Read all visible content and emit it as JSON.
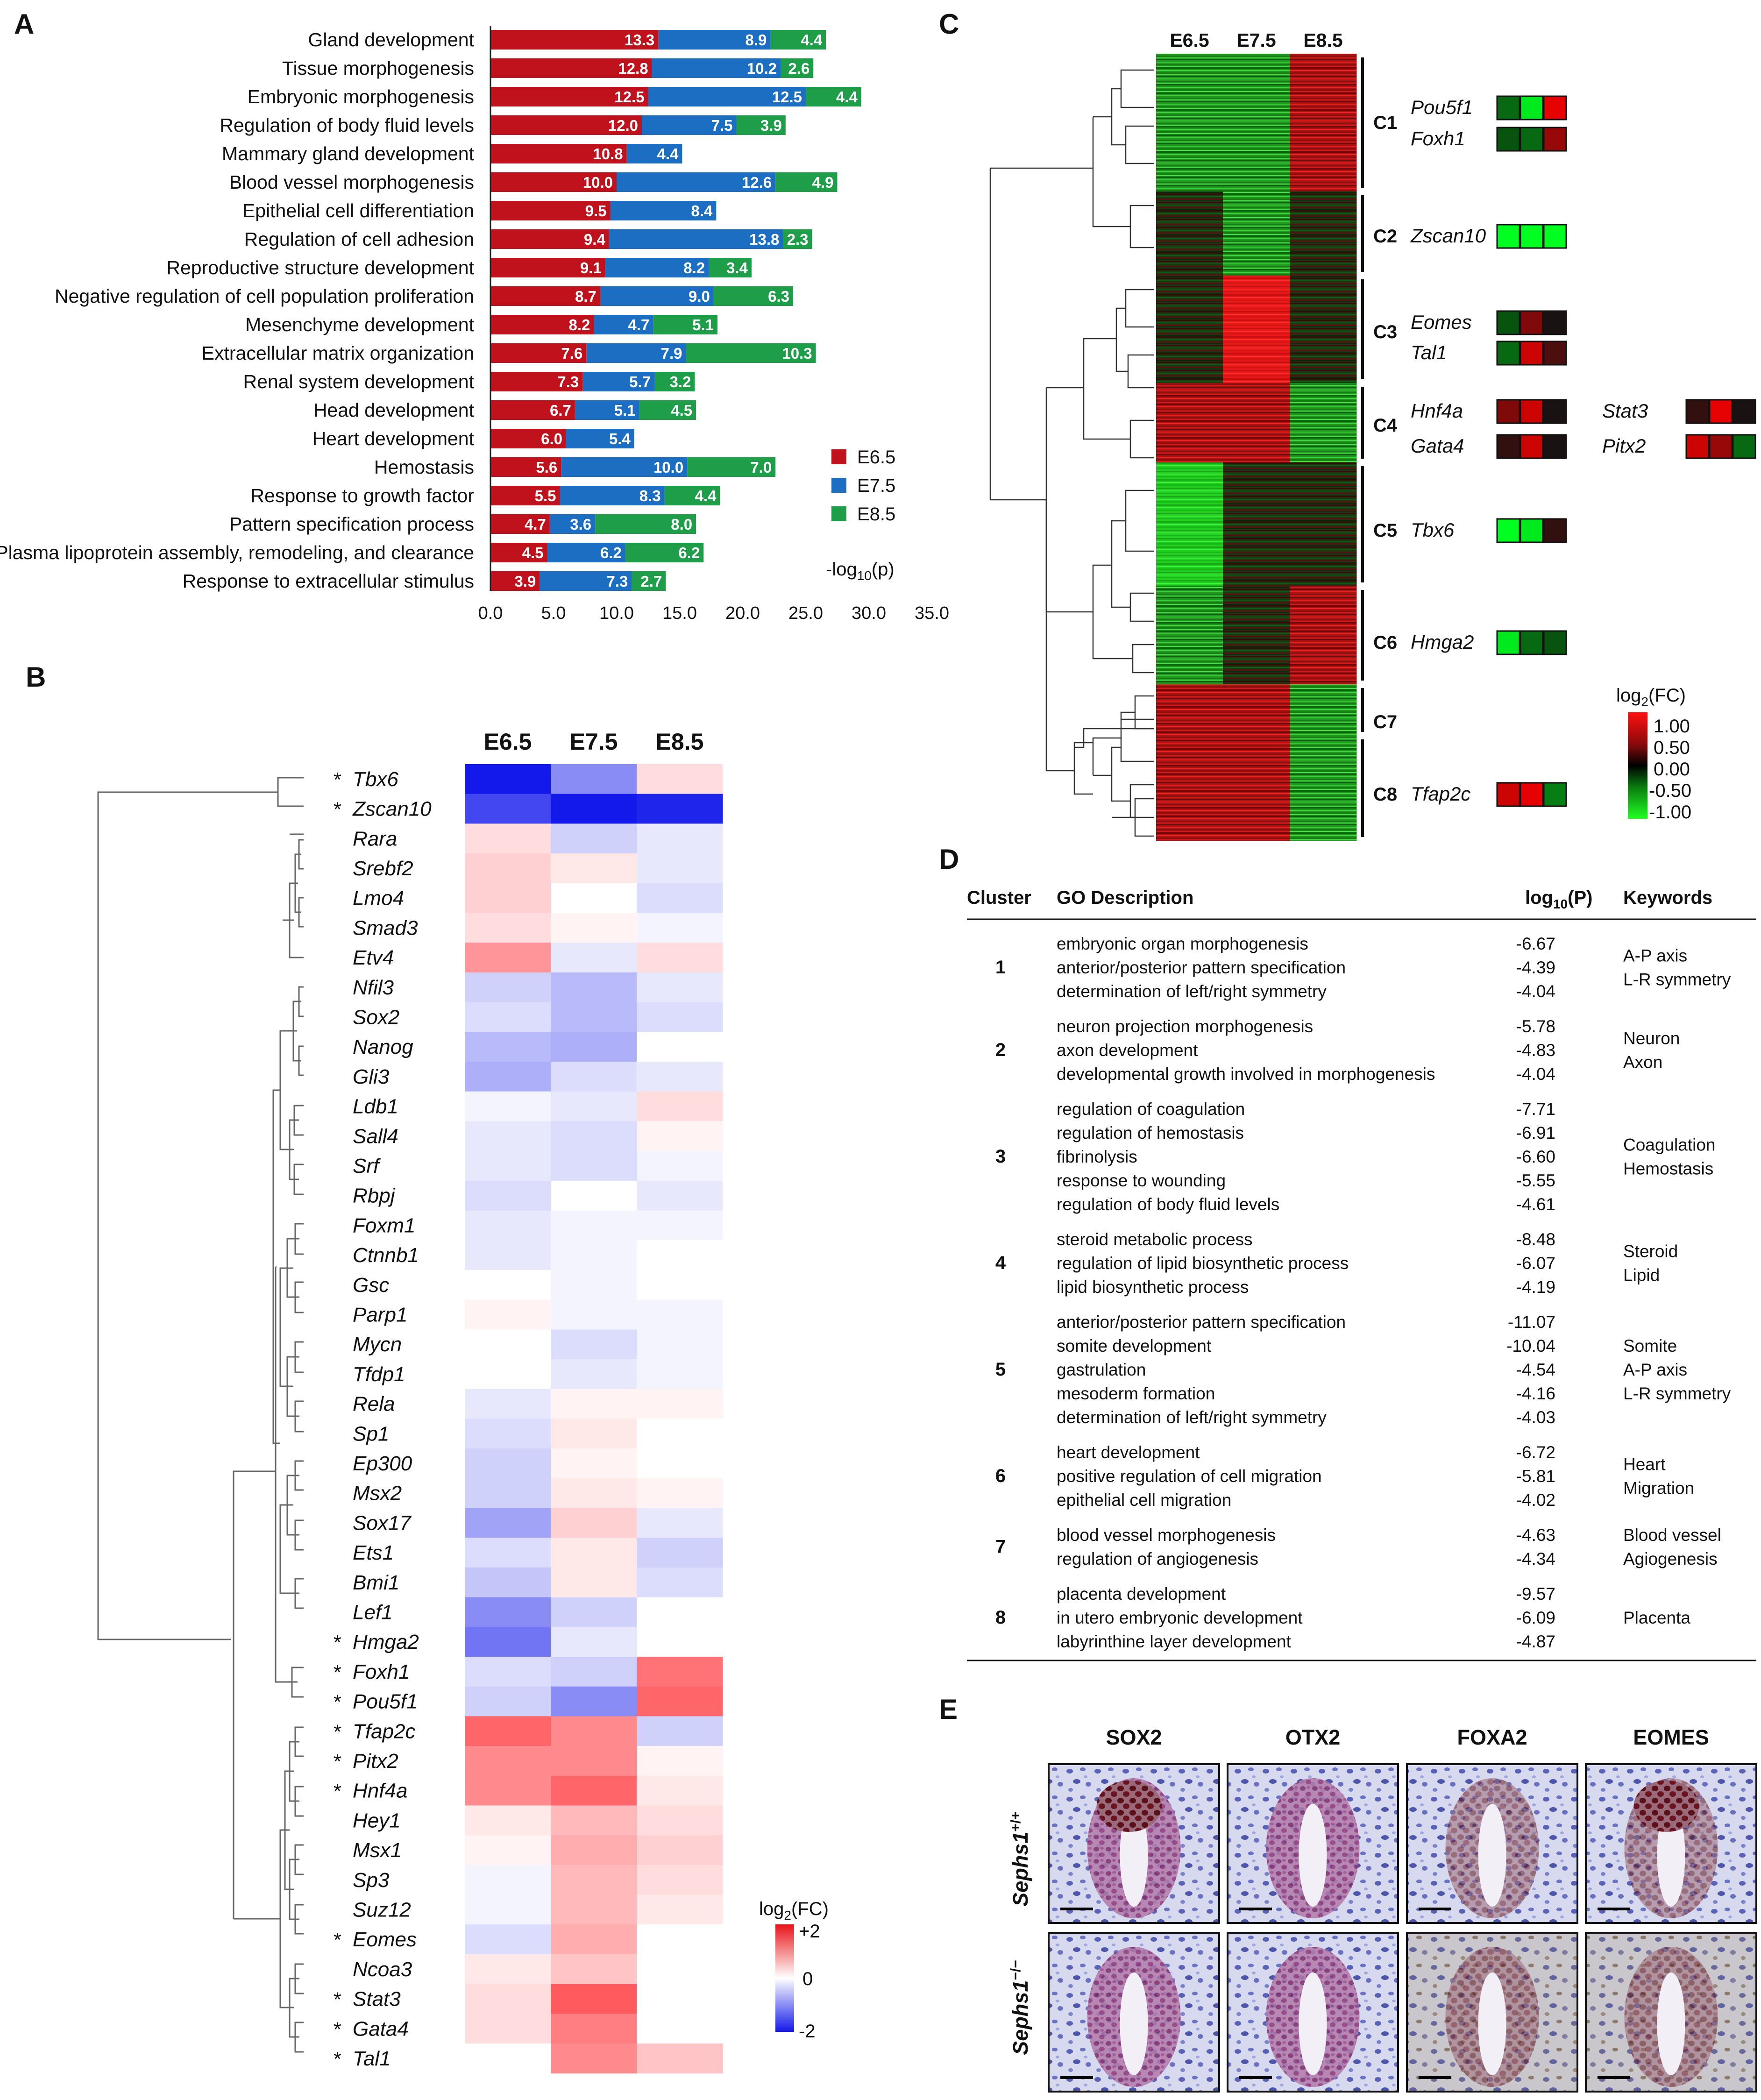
{
  "panels": {
    "a": "A",
    "b": "B",
    "c": "C",
    "d": "D",
    "e": "E"
  },
  "chart_data": [
    {
      "type": "bar",
      "stacked": true,
      "orientation": "horizontal",
      "categories": [
        "Gland development",
        "Tissue morphogenesis",
        "Embryonic morphogenesis",
        "Regulation of body fluid levels",
        "Mammary gland development",
        "Blood vessel morphogenesis",
        "Epithelial cell differentiation",
        "Regulation of cell adhesion",
        "Reproductive structure development",
        "Negative regulation of cell population proliferation",
        "Mesenchyme development",
        "Extracellular matrix organization",
        "Renal system development",
        "Head development",
        "Heart development",
        "Hemostasis",
        "Response to growth factor",
        "Pattern specification process",
        "Plasma lipoprotein assembly, remodeling, and clearance",
        "Response to extracellular stimulus"
      ],
      "series": [
        {
          "name": "E6.5",
          "color": "#c0121c",
          "values": [
            13.3,
            12.8,
            12.5,
            12.0,
            10.8,
            10.0,
            9.5,
            9.4,
            9.1,
            8.7,
            8.2,
            7.6,
            7.3,
            6.7,
            6.0,
            5.6,
            5.5,
            4.7,
            4.5,
            3.9
          ]
        },
        {
          "name": "E7.5",
          "color": "#1b6ec2",
          "values": [
            8.9,
            10.2,
            12.5,
            7.5,
            4.4,
            12.6,
            8.4,
            13.8,
            8.2,
            9.0,
            4.7,
            7.9,
            5.7,
            5.1,
            5.4,
            10.0,
            8.3,
            3.6,
            6.2,
            7.3
          ]
        },
        {
          "name": "E8.5",
          "color": "#1e9e48",
          "values": [
            4.4,
            2.6,
            4.4,
            3.9,
            null,
            4.9,
            null,
            2.3,
            3.4,
            6.3,
            5.1,
            10.3,
            3.2,
            4.5,
            null,
            7.0,
            4.4,
            8.0,
            6.2,
            2.7
          ]
        }
      ],
      "xlim": [
        0,
        35
      ],
      "xticks": [
        "0.0",
        "5.0",
        "10.0",
        "15.0",
        "20.0",
        "25.0",
        "30.0",
        "35.0"
      ],
      "xlabel_pre": "-log",
      "xlabel_sub": "10",
      "xlabel_post": "(p)"
    },
    {
      "type": "heatmap",
      "columns": [
        "E6.5",
        "E7.5",
        "E8.5"
      ],
      "rows": [
        "Tbx6",
        "Zscan10",
        "Rara",
        "Srebf2",
        "Lmo4",
        "Smad3",
        "Etv4",
        "Nfil3",
        "Sox2",
        "Nanog",
        "Gli3",
        "Ldb1",
        "Sall4",
        "Srf",
        "Rbpj",
        "Foxm1",
        "Ctnnb1",
        "Gsc",
        "Parp1",
        "Mycn",
        "Tfdp1",
        "Rela",
        "Sp1",
        "Ep300",
        "Msx2",
        "Sox17",
        "Ets1",
        "Bmi1",
        "Lef1",
        "Hmga2",
        "Foxh1",
        "Pou5f1",
        "Tfap2c",
        "Pitx2",
        "Hnf4a",
        "Hey1",
        "Msx1",
        "Sp3",
        "Suz12",
        "Eomes",
        "Ncoa3",
        "Stat3",
        "Gata4",
        "Tal1"
      ],
      "starred": [
        "Tbx6",
        "Zscan10",
        "Hmga2",
        "Foxh1",
        "Pou5f1",
        "Tfap2c",
        "Pitx2",
        "Hnf4a",
        "Eomes",
        "Stat3",
        "Gata4",
        "Tal1"
      ],
      "values": [
        [
          -2.0,
          -1.0,
          0.3
        ],
        [
          -1.6,
          -2.0,
          -1.9
        ],
        [
          0.3,
          -0.4,
          -0.2
        ],
        [
          0.4,
          0.2,
          -0.2
        ],
        [
          0.4,
          0.0,
          -0.3
        ],
        [
          0.3,
          0.1,
          -0.1
        ],
        [
          0.9,
          -0.2,
          0.3
        ],
        [
          -0.4,
          -0.6,
          -0.2
        ],
        [
          -0.3,
          -0.6,
          -0.3
        ],
        [
          -0.6,
          -0.7,
          0.0
        ],
        [
          -0.7,
          -0.3,
          -0.2
        ],
        [
          -0.1,
          -0.2,
          0.3
        ],
        [
          -0.2,
          -0.3,
          0.1
        ],
        [
          -0.2,
          -0.3,
          -0.1
        ],
        [
          -0.3,
          0.0,
          -0.2
        ],
        [
          -0.2,
          -0.1,
          -0.1
        ],
        [
          -0.2,
          -0.1,
          0.0
        ],
        [
          0.0,
          -0.1,
          0.0
        ],
        [
          0.1,
          -0.1,
          -0.1
        ],
        [
          0.0,
          -0.3,
          -0.1
        ],
        [
          0.0,
          -0.2,
          -0.1
        ],
        [
          -0.2,
          0.1,
          0.1
        ],
        [
          -0.3,
          0.2,
          0.0
        ],
        [
          -0.4,
          0.1,
          0.0
        ],
        [
          -0.4,
          0.2,
          0.1
        ],
        [
          -0.8,
          0.4,
          -0.2
        ],
        [
          -0.3,
          0.2,
          -0.4
        ],
        [
          -0.5,
          0.2,
          -0.3
        ],
        [
          -1.0,
          -0.4,
          0.0
        ],
        [
          -1.2,
          -0.2,
          0.0
        ],
        [
          -0.3,
          -0.4,
          1.2
        ],
        [
          -0.4,
          -1.0,
          1.3
        ],
        [
          1.3,
          1.0,
          -0.4
        ],
        [
          1.0,
          1.0,
          0.1
        ],
        [
          1.0,
          1.3,
          0.2
        ],
        [
          0.2,
          0.6,
          0.3
        ],
        [
          0.1,
          0.7,
          0.4
        ],
        [
          -0.1,
          0.6,
          0.3
        ],
        [
          -0.1,
          0.6,
          0.2
        ],
        [
          -0.3,
          0.7,
          0.0
        ],
        [
          0.2,
          0.5,
          0.0
        ],
        [
          0.3,
          1.4,
          0.0
        ],
        [
          0.3,
          1.1,
          0.0
        ],
        [
          null,
          1.0,
          0.5
        ]
      ],
      "legend_title_pre": "log",
      "legend_title_sub": "2",
      "legend_title_post": "(FC)",
      "legend_ticks": [
        "+2",
        "0",
        "-2"
      ],
      "scale": [
        -2,
        2
      ]
    },
    {
      "type": "heatmap",
      "columns": [
        "E6.5",
        "E7.5",
        "E8.5"
      ],
      "clusters": [
        {
          "label": "C1",
          "genes": [
            {
              "name": "Pou5f1",
              "v": [
                -0.3,
                -0.9,
                0.9
              ]
            },
            {
              "name": "Foxh1",
              "v": [
                -0.2,
                -0.3,
                0.6
              ]
            }
          ]
        },
        {
          "label": "C2",
          "genes": [
            {
              "name": "Zscan10",
              "v": [
                -1.0,
                -1.0,
                -1.0
              ]
            }
          ]
        },
        {
          "label": "C3",
          "genes": [
            {
              "name": "Eomes",
              "v": [
                -0.2,
                0.5,
                0.1
              ]
            },
            {
              "name": "Tal1",
              "v": [
                -0.3,
                0.8,
                0.3
              ]
            }
          ]
        },
        {
          "label": "C4",
          "genes": [
            {
              "name": "Hnf4a",
              "v": [
                0.5,
                0.8,
                0.1
              ]
            },
            {
              "name": "Gata4",
              "v": [
                0.2,
                0.8,
                0.1
              ]
            },
            {
              "name": "Stat3",
              "v": [
                0.2,
                0.9,
                0.1
              ]
            },
            {
              "name": "Pitx2",
              "v": [
                0.8,
                0.6,
                -0.3
              ]
            }
          ]
        },
        {
          "label": "C5",
          "genes": [
            {
              "name": "Tbx6",
              "v": [
                -1.0,
                -0.9,
                0.2
              ]
            }
          ]
        },
        {
          "label": "C6",
          "genes": [
            {
              "name": "Hmga2",
              "v": [
                -0.9,
                -0.3,
                -0.2
              ]
            }
          ]
        },
        {
          "label": "C7",
          "genes": []
        },
        {
          "label": "C8",
          "genes": [
            {
              "name": "Tfap2c",
              "v": [
                0.8,
                0.9,
                -0.4
              ]
            }
          ]
        }
      ],
      "legend_title_pre": "log",
      "legend_title_sub": "2",
      "legend_title_post": "(FC)",
      "legend_ticks": [
        "1.00",
        "0.50",
        "0.00",
        "-0.50",
        "-1.00"
      ],
      "scale": [
        -1,
        1
      ]
    }
  ],
  "table": {
    "headers": {
      "cluster": "Cluster",
      "desc": "GO Description",
      "p_pre": "log",
      "p_sub": "10",
      "p_post": "(P)",
      "kw": "Keywords"
    },
    "rows": [
      {
        "cluster": "1",
        "terms": [
          "embryonic organ morphogenesis",
          "anterior/posterior pattern specification",
          "determination of left/right symmetry"
        ],
        "p": [
          "-6.67",
          "-4.39",
          "-4.04"
        ],
        "kw": [
          "A-P axis",
          "L-R symmetry"
        ]
      },
      {
        "cluster": "2",
        "terms": [
          "neuron projection morphogenesis",
          "axon development",
          "developmental growth involved in morphogenesis"
        ],
        "p": [
          "-5.78",
          "-4.83",
          "-4.04"
        ],
        "kw": [
          "Neuron",
          "Axon"
        ]
      },
      {
        "cluster": "3",
        "terms": [
          "regulation of coagulation",
          "regulation of hemostasis",
          "fibrinolysis",
          "response to wounding",
          "regulation of body fluid levels"
        ],
        "p": [
          "-7.71",
          "-6.91",
          "-6.60",
          "-5.55",
          "-4.61"
        ],
        "kw": [
          "Coagulation",
          "Hemostasis"
        ]
      },
      {
        "cluster": "4",
        "terms": [
          "steroid metabolic process",
          "regulation of lipid biosynthetic process",
          "lipid biosynthetic process"
        ],
        "p": [
          "-8.48",
          "-6.07",
          "-4.19"
        ],
        "kw": [
          "Steroid",
          "Lipid"
        ]
      },
      {
        "cluster": "5",
        "terms": [
          "anterior/posterior pattern specification",
          "somite development",
          "gastrulation",
          "mesoderm formation",
          "determination of left/right symmetry"
        ],
        "p": [
          "-11.07",
          "-10.04",
          "-4.54",
          "-4.16",
          "-4.03"
        ],
        "kw": [
          "Somite",
          "A-P axis",
          "L-R symmetry"
        ]
      },
      {
        "cluster": "6",
        "terms": [
          "heart development",
          "positive regulation of cell migration",
          "epithelial cell migration"
        ],
        "p": [
          "-6.72",
          "-5.81",
          "-4.02"
        ],
        "kw": [
          "Heart",
          "Migration"
        ]
      },
      {
        "cluster": "7",
        "terms": [
          "blood vessel morphogenesis",
          "regulation of angiogenesis"
        ],
        "p": [
          "-4.63",
          "-4.34"
        ],
        "kw": [
          "Blood vessel",
          "Agiogenesis"
        ]
      },
      {
        "cluster": "8",
        "terms": [
          "placenta development",
          "in utero embryonic development",
          "labyrinthine layer development"
        ],
        "p": [
          "-9.57",
          "-6.09",
          "-4.87"
        ],
        "kw": [
          "Placenta"
        ]
      }
    ]
  },
  "ihc": {
    "columns": [
      "SOX2",
      "OTX2",
      "FOXA2",
      "EOMES"
    ],
    "row1": {
      "gene": "Sephs1",
      "sup": "+/+"
    },
    "row2": {
      "gene": "Sephs1",
      "sup": "−/−"
    }
  }
}
